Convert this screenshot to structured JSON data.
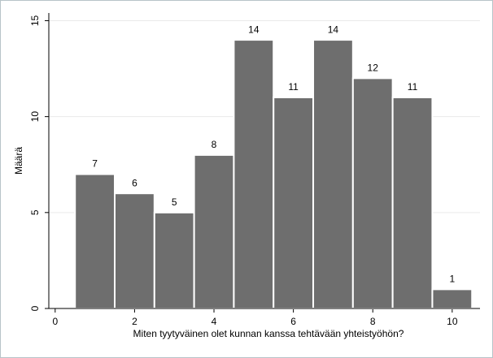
{
  "chart_data": {
    "type": "histogram",
    "x_label": "Miten tyytyväinen olet kunnan kanssa tehtävään yhteistyöhön?",
    "y_label": "Määrä",
    "bins": [
      0.5,
      1.5,
      2.5,
      3.5,
      4.5,
      5.5,
      6.5,
      7.5,
      8.5,
      9.5,
      10.5
    ],
    "values": [
      7,
      6,
      5,
      8,
      14,
      11,
      14,
      12,
      11,
      1
    ],
    "color": "#6e6e6e",
    "xlim": [
      -0.16,
      10.7
    ],
    "xticks": [
      0,
      2,
      4,
      6,
      8,
      10
    ],
    "ylim": [
      0,
      15.4
    ],
    "yticks": [
      0,
      5,
      10,
      15
    ],
    "grid": true
  }
}
